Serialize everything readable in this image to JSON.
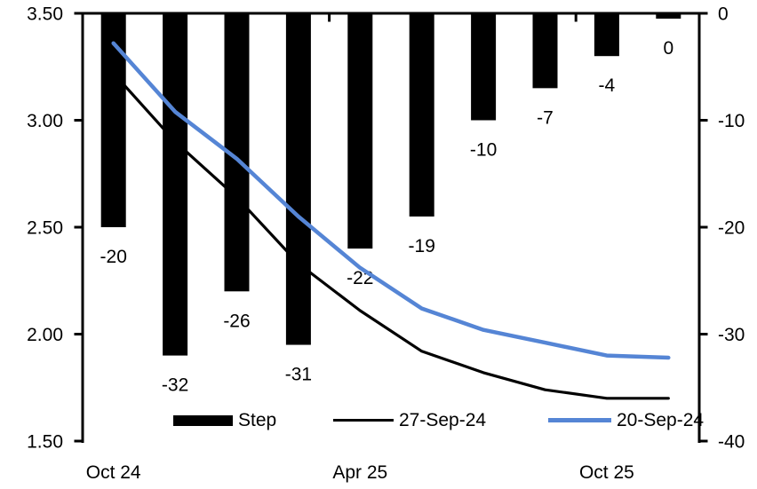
{
  "chart_data": {
    "type": "combo_bar_line",
    "n_categories": 10,
    "x_axis": {
      "tick_labels": [
        {
          "text": "Oct 24",
          "category_index": 0
        },
        {
          "text": "Apr 25",
          "category_index": 4
        },
        {
          "text": "Oct 25",
          "category_index": 8
        }
      ],
      "boundary_tick_indices": [
        4,
        8
      ]
    },
    "left_axis": {
      "min": 1.5,
      "max": 3.5,
      "tick_values": [
        3.5,
        3.0,
        2.5,
        2.0,
        1.5
      ],
      "tick_labels": [
        "3.50",
        "3.00",
        "2.50",
        "2.00",
        "1.50"
      ]
    },
    "right_axis": {
      "min": -40,
      "max": 0,
      "tick_values": [
        0,
        -10,
        -20,
        -30,
        -40
      ],
      "tick_labels": [
        "0",
        "-10",
        "-20",
        "-30",
        "-40"
      ]
    },
    "bar_series": {
      "name": "Step",
      "axis": "right",
      "color": "#000000",
      "values": [
        -20,
        -32,
        -26,
        -31,
        -22,
        -19,
        -10,
        -7,
        -4,
        0
      ],
      "data_labels": [
        "-20",
        "-32",
        "-26",
        "-31",
        "-22",
        "-19",
        "-10",
        "-7",
        "-4",
        "0"
      ]
    },
    "line_series": [
      {
        "name": "27-Sep-24",
        "axis": "left",
        "color": "#000000",
        "stroke_width": 3.2,
        "values": [
          3.22,
          2.9,
          2.64,
          2.33,
          2.11,
          1.92,
          1.82,
          1.74,
          1.7,
          1.7
        ]
      },
      {
        "name": "20-Sep-24",
        "axis": "left",
        "color": "#5585D5",
        "stroke_width": 4.5,
        "values": [
          3.36,
          3.04,
          2.82,
          2.55,
          2.31,
          2.12,
          2.02,
          1.96,
          1.9,
          1.89
        ]
      }
    ],
    "legend": [
      {
        "label": "Step",
        "swatch": "bar",
        "color": "#000000"
      },
      {
        "label": "27-Sep-24",
        "swatch": "line",
        "color": "#000000"
      },
      {
        "label": "20-Sep-24",
        "swatch": "line",
        "color": "#5585D5"
      }
    ]
  }
}
